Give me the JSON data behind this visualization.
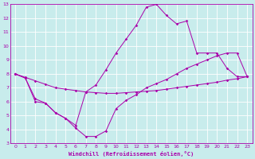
{
  "xlabel": "Windchill (Refroidissement éolien,°C)",
  "bg_color": "#c8ecec",
  "grid_color": "#ffffff",
  "line_color": "#aa00aa",
  "xlim": [
    -0.5,
    23.5
  ],
  "ylim": [
    3,
    13
  ],
  "xticks": [
    0,
    1,
    2,
    3,
    4,
    5,
    6,
    7,
    8,
    9,
    10,
    11,
    12,
    13,
    14,
    15,
    16,
    17,
    18,
    19,
    20,
    21,
    22,
    23
  ],
  "yticks": [
    3,
    4,
    5,
    6,
    7,
    8,
    9,
    10,
    11,
    12,
    13
  ],
  "series": {
    "line1_x": [
      0,
      1,
      2,
      3,
      4,
      5,
      6,
      7,
      8,
      9,
      10,
      11,
      12,
      13,
      14,
      15,
      16,
      17,
      18,
      19,
      20,
      21,
      22,
      23
    ],
    "line1_y": [
      8.0,
      7.7,
      6.0,
      5.9,
      5.2,
      4.8,
      4.1,
      3.5,
      3.5,
      3.9,
      5.5,
      6.1,
      6.5,
      7.0,
      7.3,
      7.6,
      8.0,
      8.4,
      8.7,
      9.0,
      9.3,
      9.5,
      9.5,
      7.8
    ],
    "line2_x": [
      0,
      1,
      2,
      3,
      4,
      5,
      6,
      7,
      8,
      9,
      10,
      11,
      12,
      13,
      14,
      15,
      16,
      17,
      18,
      19,
      20,
      21,
      22,
      23
    ],
    "line2_y": [
      8.0,
      7.7,
      6.2,
      5.9,
      5.2,
      4.8,
      4.3,
      6.7,
      7.2,
      8.3,
      9.5,
      10.5,
      11.5,
      12.8,
      13.0,
      12.2,
      11.6,
      11.8,
      9.5,
      9.5,
      9.5,
      8.4,
      7.8,
      7.8
    ],
    "line3_x": [
      0,
      1,
      2,
      3,
      4,
      5,
      6,
      7,
      8,
      9,
      10,
      11,
      12,
      13,
      14,
      15,
      16,
      17,
      18,
      19,
      20,
      21,
      22,
      23
    ],
    "line3_y": [
      8.0,
      7.75,
      7.5,
      7.25,
      7.0,
      6.9,
      6.8,
      6.7,
      6.65,
      6.6,
      6.6,
      6.65,
      6.7,
      6.75,
      6.8,
      6.9,
      7.0,
      7.1,
      7.2,
      7.3,
      7.4,
      7.55,
      7.65,
      7.8
    ]
  }
}
